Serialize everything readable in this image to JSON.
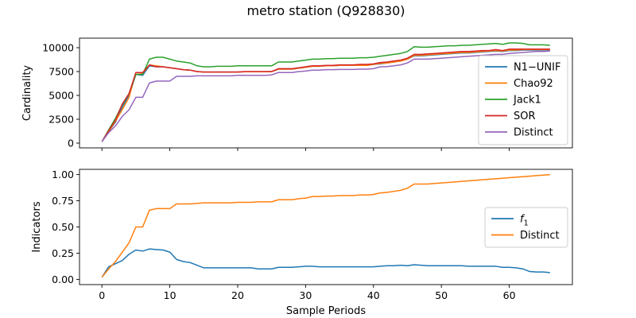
{
  "figure": {
    "title": "metro station (Q928830)"
  },
  "colors": {
    "blue": "#1f77b4",
    "orange": "#ff7f0e",
    "green": "#2ca02c",
    "red": "#d62728",
    "purple": "#9467bd"
  },
  "chart_data": [
    {
      "type": "line",
      "ylabel": "Cardinality",
      "xlabel": "",
      "xlim": [
        -3.3,
        69.3
      ],
      "ylim": [
        -500,
        11000
      ],
      "xticks": [
        0,
        10,
        20,
        30,
        40,
        50,
        60
      ],
      "yticks": [
        0,
        2500,
        5000,
        7500,
        10000
      ],
      "show_xtick_labels": false,
      "legend_position": "lower-right",
      "x": [
        0,
        1,
        2,
        3,
        4,
        5,
        6,
        7,
        8,
        9,
        10,
        11,
        12,
        13,
        14,
        15,
        16,
        17,
        18,
        19,
        20,
        21,
        22,
        23,
        24,
        25,
        26,
        27,
        28,
        29,
        30,
        31,
        32,
        33,
        34,
        35,
        36,
        37,
        38,
        39,
        40,
        41,
        42,
        43,
        44,
        45,
        46,
        47,
        48,
        49,
        50,
        51,
        52,
        53,
        54,
        55,
        56,
        57,
        58,
        59,
        60,
        61,
        62,
        63,
        64,
        65,
        66
      ],
      "series": [
        {
          "name": "N1−UNIF",
          "color": "#1f77b4",
          "values": [
            150,
            1200,
            2200,
            3800,
            5000,
            7200,
            7100,
            8100,
            8000,
            8000,
            7900,
            7800,
            7700,
            7650,
            7500,
            7450,
            7450,
            7450,
            7450,
            7450,
            7450,
            7480,
            7480,
            7480,
            7480,
            7500,
            7750,
            7750,
            7750,
            7850,
            7950,
            8050,
            8050,
            8100,
            8100,
            8150,
            8150,
            8150,
            8150,
            8150,
            8250,
            8300,
            8400,
            8500,
            8600,
            8800,
            9150,
            9150,
            9200,
            9250,
            9300,
            9350,
            9400,
            9450,
            9450,
            9500,
            9550,
            9600,
            9650,
            9600,
            9700,
            9700,
            9750,
            9750,
            9750,
            9750,
            9750
          ]
        },
        {
          "name": "Chao92",
          "color": "#ff7f0e",
          "values": [
            150,
            1200,
            2300,
            3500,
            4800,
            7400,
            7300,
            8200,
            8100,
            8000,
            7900,
            7800,
            7700,
            7650,
            7500,
            7450,
            7450,
            7450,
            7450,
            7450,
            7450,
            7480,
            7480,
            7480,
            7480,
            7500,
            7750,
            7750,
            7750,
            7850,
            7950,
            8050,
            8050,
            8100,
            8100,
            8150,
            8150,
            8150,
            8150,
            8150,
            8250,
            8350,
            8400,
            8500,
            8600,
            8800,
            9200,
            9200,
            9250,
            9300,
            9350,
            9400,
            9450,
            9500,
            9500,
            9550,
            9600,
            9650,
            9700,
            9650,
            9750,
            9750,
            9800,
            9800,
            9800,
            9800,
            9800
          ]
        },
        {
          "name": "Jack1",
          "color": "#2ca02c",
          "values": [
            150,
            1400,
            2600,
            4000,
            5200,
            7200,
            7200,
            8800,
            9000,
            9000,
            8800,
            8600,
            8500,
            8400,
            8100,
            8000,
            8000,
            8050,
            8050,
            8050,
            8100,
            8100,
            8100,
            8100,
            8100,
            8100,
            8500,
            8500,
            8500,
            8600,
            8700,
            8800,
            8800,
            8850,
            8850,
            8900,
            8900,
            8900,
            8950,
            8950,
            9000,
            9100,
            9200,
            9300,
            9400,
            9600,
            10100,
            10050,
            10050,
            10100,
            10150,
            10200,
            10200,
            10250,
            10250,
            10300,
            10350,
            10400,
            10450,
            10350,
            10500,
            10500,
            10450,
            10300,
            10300,
            10300,
            10250
          ]
        },
        {
          "name": "SOR",
          "color": "#d62728",
          "values": [
            150,
            1300,
            2400,
            4100,
            5200,
            7400,
            7400,
            8200,
            8000,
            8000,
            7900,
            7800,
            7700,
            7650,
            7500,
            7450,
            7450,
            7450,
            7450,
            7450,
            7450,
            7500,
            7500,
            7500,
            7500,
            7500,
            7800,
            7800,
            7800,
            7900,
            8000,
            8100,
            8100,
            8150,
            8150,
            8200,
            8200,
            8200,
            8250,
            8250,
            8300,
            8450,
            8500,
            8600,
            8700,
            8900,
            9300,
            9300,
            9350,
            9400,
            9450,
            9500,
            9550,
            9600,
            9600,
            9650,
            9700,
            9700,
            9800,
            9700,
            9850,
            9850,
            9850,
            9850,
            9850,
            9850,
            9850
          ]
        },
        {
          "name": "Distinct",
          "color": "#9467bd",
          "values": [
            150,
            1100,
            1800,
            2800,
            3500,
            4800,
            4800,
            6300,
            6500,
            6500,
            6500,
            7000,
            7000,
            7000,
            7050,
            7050,
            7050,
            7050,
            7050,
            7050,
            7100,
            7100,
            7100,
            7100,
            7100,
            7150,
            7400,
            7400,
            7400,
            7500,
            7550,
            7650,
            7650,
            7700,
            7700,
            7720,
            7720,
            7720,
            7750,
            7750,
            7800,
            8000,
            8020,
            8100,
            8200,
            8400,
            8800,
            8800,
            8800,
            8850,
            8900,
            8950,
            9000,
            9050,
            9100,
            9150,
            9200,
            9250,
            9300,
            9300,
            9400,
            9450,
            9500,
            9550,
            9600,
            9600,
            9650
          ]
        }
      ]
    },
    {
      "type": "line",
      "ylabel": "Indicators",
      "xlabel": "Sample Periods",
      "xlim": [
        -3.3,
        69.3
      ],
      "ylim": [
        -0.05,
        1.05
      ],
      "xticks": [
        0,
        10,
        20,
        30,
        40,
        50,
        60
      ],
      "yticks": [
        "0.00",
        "0.25",
        "0.50",
        "0.75",
        "1.00"
      ],
      "show_xtick_labels": true,
      "legend_position": "center-right",
      "x": [
        0,
        1,
        2,
        3,
        4,
        5,
        6,
        7,
        8,
        9,
        10,
        11,
        12,
        13,
        14,
        15,
        16,
        17,
        18,
        19,
        20,
        21,
        22,
        23,
        24,
        25,
        26,
        27,
        28,
        29,
        30,
        31,
        32,
        33,
        34,
        35,
        36,
        37,
        38,
        39,
        40,
        41,
        42,
        43,
        44,
        45,
        46,
        47,
        48,
        49,
        50,
        51,
        52,
        53,
        54,
        55,
        56,
        57,
        58,
        59,
        60,
        61,
        62,
        63,
        64,
        65,
        66
      ],
      "series": [
        {
          "name": "f_1",
          "color": "#1f77b4",
          "values": [
            0.02,
            0.12,
            0.15,
            0.18,
            0.24,
            0.28,
            0.27,
            0.29,
            0.285,
            0.28,
            0.26,
            0.19,
            0.17,
            0.16,
            0.135,
            0.11,
            0.11,
            0.11,
            0.11,
            0.11,
            0.11,
            0.11,
            0.11,
            0.1,
            0.1,
            0.1,
            0.115,
            0.115,
            0.115,
            0.12,
            0.125,
            0.125,
            0.12,
            0.12,
            0.12,
            0.12,
            0.12,
            0.12,
            0.12,
            0.12,
            0.12,
            0.125,
            0.13,
            0.13,
            0.135,
            0.13,
            0.14,
            0.135,
            0.13,
            0.13,
            0.13,
            0.13,
            0.13,
            0.13,
            0.125,
            0.125,
            0.125,
            0.125,
            0.125,
            0.115,
            0.115,
            0.11,
            0.1,
            0.075,
            0.07,
            0.07,
            0.065
          ]
        },
        {
          "name": "Distinct",
          "color": "#ff7f0e",
          "values": [
            0.02,
            0.1,
            0.17,
            0.26,
            0.35,
            0.5,
            0.5,
            0.66,
            0.675,
            0.675,
            0.675,
            0.72,
            0.72,
            0.72,
            0.725,
            0.73,
            0.73,
            0.73,
            0.73,
            0.73,
            0.735,
            0.735,
            0.735,
            0.74,
            0.74,
            0.74,
            0.76,
            0.76,
            0.76,
            0.77,
            0.775,
            0.79,
            0.79,
            0.795,
            0.795,
            0.8,
            0.8,
            0.8,
            0.805,
            0.805,
            0.81,
            0.825,
            0.83,
            0.84,
            0.85,
            0.87,
            0.91,
            0.91,
            0.91,
            0.915,
            0.92,
            0.925,
            0.93,
            0.935,
            0.94,
            0.945,
            0.95,
            0.955,
            0.96,
            0.965,
            0.97,
            0.975,
            0.98,
            0.985,
            0.99,
            0.995,
            1.0
          ]
        }
      ]
    }
  ]
}
